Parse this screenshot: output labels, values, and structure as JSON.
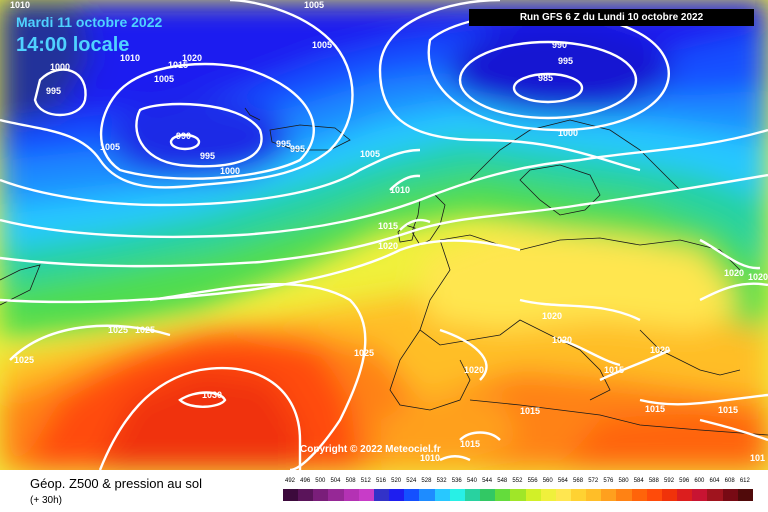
{
  "header": {
    "date": "Mardi 11 octobre 2022",
    "local_time": "14:00 locale",
    "run": "Run GFS 6 Z du Lundi 10 octobre 2022"
  },
  "footer": {
    "variable": "Géop. Z500 & pression au sol",
    "lead_time": "(+ 30h)",
    "copyright": "Copyright © 2022 Meteociel.fr"
  },
  "isobar_labels": [
    {
      "text": "1010",
      "name": "label-1010-nw"
    },
    {
      "text": "1005",
      "name": "label-1005-top"
    },
    {
      "text": "1005",
      "name": "label-1005-n1"
    },
    {
      "text": "1010",
      "name": "label-1010-n"
    },
    {
      "text": "1020",
      "name": "label-1020-n"
    },
    {
      "text": "1015",
      "name": "label-1015-n"
    },
    {
      "text": "1005",
      "name": "label-1005-n2"
    },
    {
      "text": "1000",
      "name": "label-1000-w"
    },
    {
      "text": "995",
      "name": "label-995-w"
    },
    {
      "text": "990",
      "name": "label-990-c"
    },
    {
      "text": "995",
      "name": "label-995-c"
    },
    {
      "text": "1005",
      "name": "label-1005-w"
    },
    {
      "text": "1000",
      "name": "label-1000-c"
    },
    {
      "text": "995",
      "name": "label-995-ice1"
    },
    {
      "text": "995",
      "name": "label-995-ice2"
    },
    {
      "text": "1005",
      "name": "label-1005-c"
    },
    {
      "text": "995",
      "name": "label-995-low"
    },
    {
      "text": "990",
      "name": "label-990-low"
    },
    {
      "text": "985",
      "name": "label-985-low"
    },
    {
      "text": "1000",
      "name": "label-1000-scan"
    },
    {
      "text": "1010",
      "name": "label-1010-c"
    },
    {
      "text": "1015",
      "name": "label-1015-c"
    },
    {
      "text": "1020",
      "name": "label-1020-c"
    },
    {
      "text": "1025",
      "name": "label-1025-a"
    },
    {
      "text": "1025",
      "name": "label-1025-b"
    },
    {
      "text": "1025",
      "name": "label-1025-w"
    },
    {
      "text": "1025",
      "name": "label-1025-iberia"
    },
    {
      "text": "1030",
      "name": "label-1030-azores"
    },
    {
      "text": "1020",
      "name": "label-1020-fr"
    },
    {
      "text": "1020",
      "name": "label-1020-it"
    },
    {
      "text": "1020",
      "name": "label-1020-sp"
    },
    {
      "text": "1015",
      "name": "label-1015-balk"
    },
    {
      "text": "1020",
      "name": "label-1020-gr"
    },
    {
      "text": "1015",
      "name": "label-1015-af"
    },
    {
      "text": "1015",
      "name": "label-1015-af2"
    },
    {
      "text": "1010",
      "name": "label-1010-af"
    },
    {
      "text": "1015",
      "name": "label-1015-e"
    },
    {
      "text": "1020",
      "name": "label-1020-e1"
    },
    {
      "text": "1020",
      "name": "label-1020-e2"
    },
    {
      "text": "1015",
      "name": "label-1015-se"
    },
    {
      "text": "101",
      "name": "label-101-se"
    }
  ],
  "scale": {
    "values": [
      "492",
      "496",
      "500",
      "504",
      "508",
      "512",
      "516",
      "520",
      "524",
      "528",
      "532",
      "536",
      "540",
      "544",
      "548",
      "552",
      "556",
      "560",
      "564",
      "568",
      "572",
      "576",
      "580",
      "584",
      "588",
      "592",
      "596",
      "600",
      "604",
      "608",
      "612"
    ],
    "colors": [
      "#3c0a3c",
      "#5a145a",
      "#7a1e7a",
      "#962896",
      "#b432b4",
      "#c83cc8",
      "#3232c8",
      "#1e1ef0",
      "#1450ff",
      "#1e8cff",
      "#28c8ff",
      "#28f0e6",
      "#28d2a0",
      "#32c864",
      "#64dc3c",
      "#a0e628",
      "#d2f028",
      "#f0f03c",
      "#ffe650",
      "#ffd232",
      "#ffbe28",
      "#ffa01e",
      "#ff8214",
      "#ff640a",
      "#ff4b0a",
      "#f0320a",
      "#dc1e1e",
      "#c81432",
      "#a0141e",
      "#780a14",
      "#500a0a"
    ]
  }
}
